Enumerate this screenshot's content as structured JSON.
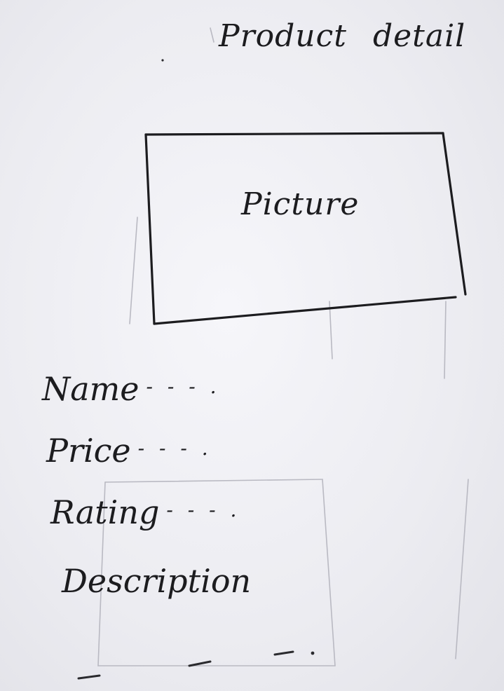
{
  "page": {
    "title": "Product detail"
  },
  "picture": {
    "label": "Picture"
  },
  "fields": {
    "name": "Name",
    "price": "Price",
    "rating": "Rating",
    "description": "Description"
  },
  "placeholder_dots": "- - - .",
  "colors": {
    "paper": "#eeeef2",
    "ink": "#1c1c1f",
    "show_through": "#b9b9c2"
  }
}
